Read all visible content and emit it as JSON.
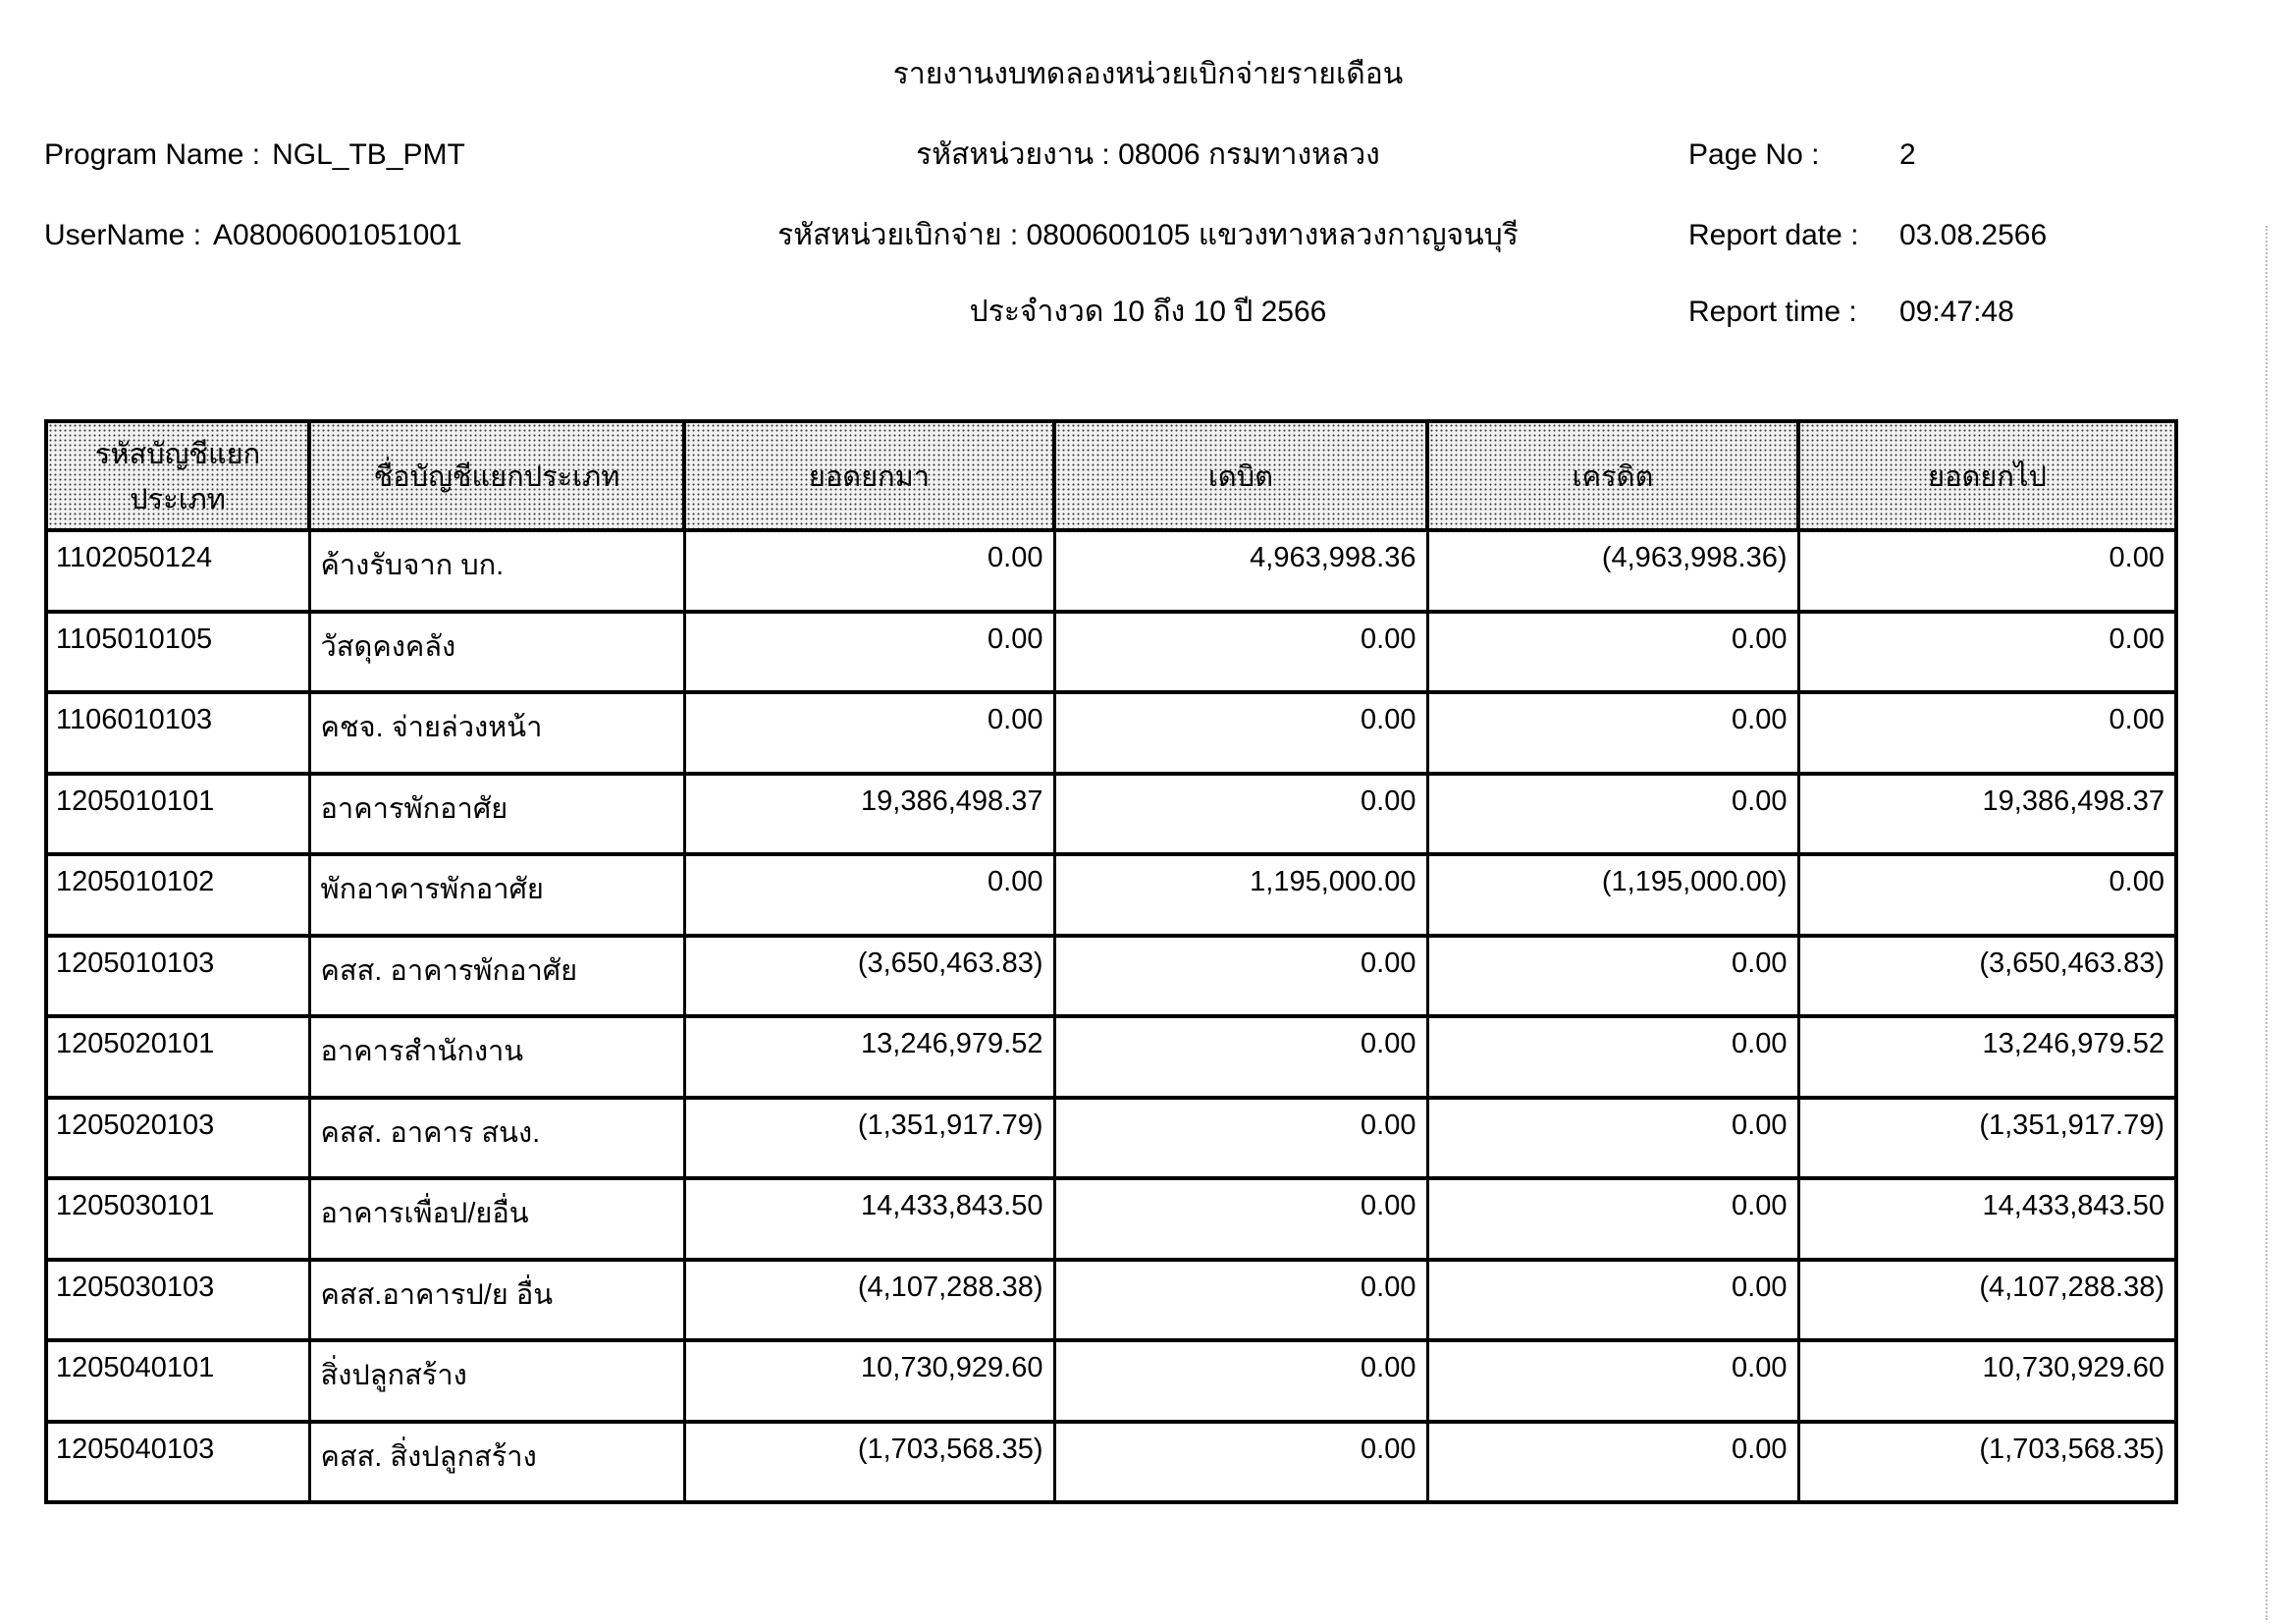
{
  "report": {
    "title": "รายงานงบทดลองหน่วยเบิกจ่ายรายเดือน",
    "program": {
      "label": "Program Name :",
      "value": "NGL_TB_PMT"
    },
    "user": {
      "label": "UserName :",
      "value": "A08006001051001"
    },
    "agency_line": "รหัสหน่วยงาน : 08006 กรมทางหลวง",
    "disburse_line": "รหัสหน่วยเบิกจ่าย : 0800600105 แขวงทางหลวงกาญจนบุรี",
    "period_line": "ประจำงวด 10 ถึง 10 ปี 2566",
    "page_no": {
      "label": "Page No :",
      "value": "2"
    },
    "report_date": {
      "label": "Report date :",
      "value": "03.08.2566"
    },
    "report_time": {
      "label": "Report time :",
      "value": "09:47:48"
    }
  },
  "table": {
    "headers": [
      "รหัสบัญชีแยกประเภท",
      "ชื่อบัญชีแยกประเภท",
      "ยอดยกมา",
      "เดบิต",
      "เครดิต",
      "ยอดยกไป"
    ],
    "rows": [
      [
        "1102050124",
        "ค้างรับจาก บก.",
        "0.00",
        "4,963,998.36",
        "(4,963,998.36)",
        "0.00"
      ],
      [
        "1105010105",
        "วัสดุคงคลัง",
        "0.00",
        "0.00",
        "0.00",
        "0.00"
      ],
      [
        "1106010103",
        "คชจ. จ่ายล่วงหน้า",
        "0.00",
        "0.00",
        "0.00",
        "0.00"
      ],
      [
        "1205010101",
        "อาคารพักอาศัย",
        "19,386,498.37",
        "0.00",
        "0.00",
        "19,386,498.37"
      ],
      [
        "1205010102",
        "พักอาคารพักอาศัย",
        "0.00",
        "1,195,000.00",
        "(1,195,000.00)",
        "0.00"
      ],
      [
        "1205010103",
        "คสส. อาคารพักอาศัย",
        "(3,650,463.83)",
        "0.00",
        "0.00",
        "(3,650,463.83)"
      ],
      [
        "1205020101",
        "อาคารสำนักงาน",
        "13,246,979.52",
        "0.00",
        "0.00",
        "13,246,979.52"
      ],
      [
        "1205020103",
        "คสส. อาคาร สนง.",
        "(1,351,917.79)",
        "0.00",
        "0.00",
        "(1,351,917.79)"
      ],
      [
        "1205030101",
        "อาคารเพื่อป/ยอื่น",
        "14,433,843.50",
        "0.00",
        "0.00",
        "14,433,843.50"
      ],
      [
        "1205030103",
        "คสส.อาคารป/ย อื่น",
        "(4,107,288.38)",
        "0.00",
        "0.00",
        "(4,107,288.38)"
      ],
      [
        "1205040101",
        "สิ่งปลูกสร้าง",
        "10,730,929.60",
        "0.00",
        "0.00",
        "10,730,929.60"
      ],
      [
        "1205040103",
        "คสส. สิ่งปลูกสร้าง",
        "(1,703,568.35)",
        "0.00",
        "0.00",
        "(1,703,568.35)"
      ]
    ]
  }
}
